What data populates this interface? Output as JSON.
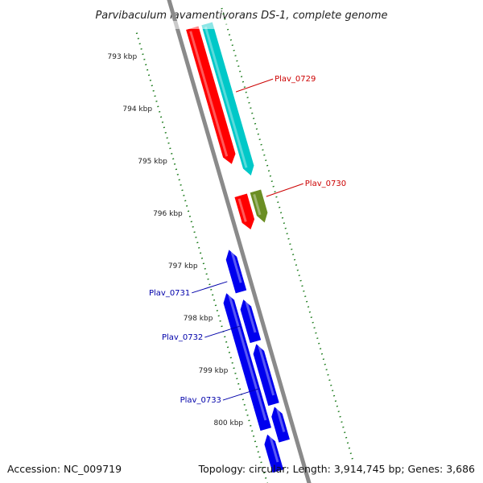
{
  "title": "Parvibaculum lavamentivorans DS-1, complete genome",
  "accession": "Accession: NC_009719",
  "summary": "Topology: circular; Length: 3,914,745 bp; Genes: 3,686",
  "colors": {
    "backbone": "#8a8a8a",
    "ruler": "#1a7a1a",
    "red": "#ff0000",
    "cyan": "#00c8c8",
    "olive": "#6b8e23",
    "blue": "#0000ee",
    "forward_label": "#cc0000",
    "reverse_label": "#0000aa"
  },
  "ruler": {
    "ticks": [
      {
        "kbp": 793,
        "label": "793 kbp"
      },
      {
        "kbp": 794,
        "label": "794 kbp"
      },
      {
        "kbp": 795,
        "label": "795 kbp"
      },
      {
        "kbp": 796,
        "label": "796 kbp"
      },
      {
        "kbp": 797,
        "label": "797 kbp"
      },
      {
        "kbp": 798,
        "label": "798 kbp"
      },
      {
        "kbp": 799,
        "label": "799 kbp"
      },
      {
        "kbp": 800,
        "label": "800 kbp"
      }
    ]
  },
  "features": [
    {
      "track": "forward_outer",
      "color": "cyan",
      "start": 792.75,
      "end": 795.65,
      "strand": "+"
    },
    {
      "track": "forward_outer",
      "color": "olive",
      "start": 795.95,
      "end": 796.55,
      "strand": "+"
    },
    {
      "track": "forward_inner",
      "color": "red",
      "start": 792.75,
      "end": 795.35,
      "strand": "+"
    },
    {
      "track": "forward_inner",
      "color": "red",
      "start": 795.95,
      "end": 796.6,
      "strand": "+"
    },
    {
      "track": "reverse_inner",
      "color": "blue",
      "start": 796.85,
      "end": 797.65,
      "strand": "-"
    },
    {
      "track": "reverse_inner",
      "color": "blue",
      "start": 797.8,
      "end": 798.6,
      "strand": "-"
    },
    {
      "track": "reverse_inner",
      "color": "blue",
      "start": 798.65,
      "end": 799.8,
      "strand": "-"
    },
    {
      "track": "reverse_inner",
      "color": "blue",
      "start": 799.85,
      "end": 800.5,
      "strand": "-"
    },
    {
      "track": "reverse_outer",
      "color": "blue",
      "start": 797.6,
      "end": 800.2,
      "strand": "-"
    },
    {
      "track": "reverse_outer",
      "color": "blue",
      "start": 800.3,
      "end": 801.0,
      "strand": "-"
    }
  ],
  "gene_labels": [
    {
      "name": "Plav_0729",
      "side": "right",
      "at": 794.1,
      "color": "forward_label"
    },
    {
      "name": "Plav_0730",
      "side": "right",
      "at": 796.1,
      "color": "forward_label"
    },
    {
      "name": "Plav_0731",
      "side": "left",
      "at": 797.4,
      "color": "reverse_label"
    },
    {
      "name": "Plav_0732",
      "side": "left",
      "at": 798.25,
      "color": "reverse_label"
    },
    {
      "name": "Plav_0733",
      "side": "left",
      "at": 799.45,
      "color": "reverse_label"
    }
  ]
}
